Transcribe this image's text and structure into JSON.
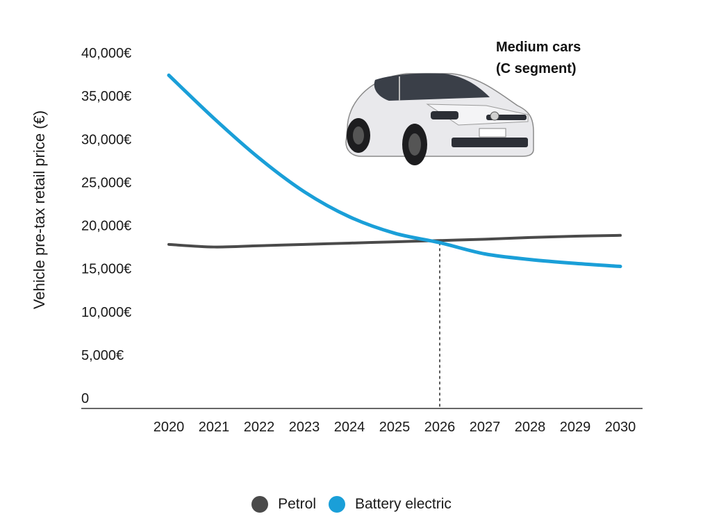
{
  "chart_data": {
    "type": "line",
    "title": "",
    "annotation": [
      "Medium cars",
      "(C segment)"
    ],
    "ylabel": "Vehicle pre-tax retail price (€)",
    "xlabel": "",
    "x": [
      "2020",
      "2021",
      "2022",
      "2023",
      "2024",
      "2025",
      "2026",
      "2027",
      "2028",
      "2029",
      "2030"
    ],
    "ylim": [
      0,
      40000
    ],
    "yticks": [
      0,
      5000,
      10000,
      15000,
      20000,
      25000,
      30000,
      35000,
      40000
    ],
    "ytick_labels": [
      "0",
      "5,000€",
      "10,000€",
      "15,000€",
      "20,000€",
      "25,000€",
      "30,000€",
      "35,000€",
      "40,000€"
    ],
    "series": [
      {
        "name": "Petrol",
        "color": "#4a4a4a",
        "values": [
          17800,
          17500,
          17650,
          17800,
          17950,
          18100,
          18250,
          18400,
          18600,
          18750,
          18850
        ]
      },
      {
        "name": "Battery electric",
        "color": "#1a9fd8",
        "values": [
          37400,
          32400,
          27800,
          23900,
          21000,
          19100,
          18000,
          16700,
          16050,
          15600,
          15250
        ]
      }
    ],
    "marker": {
      "x": "2026",
      "style": "dashed"
    },
    "grid": false,
    "legend_position": "bottom-center"
  },
  "image": {
    "icon": "car-photo-icon",
    "description_color": "#e8e8e8"
  }
}
